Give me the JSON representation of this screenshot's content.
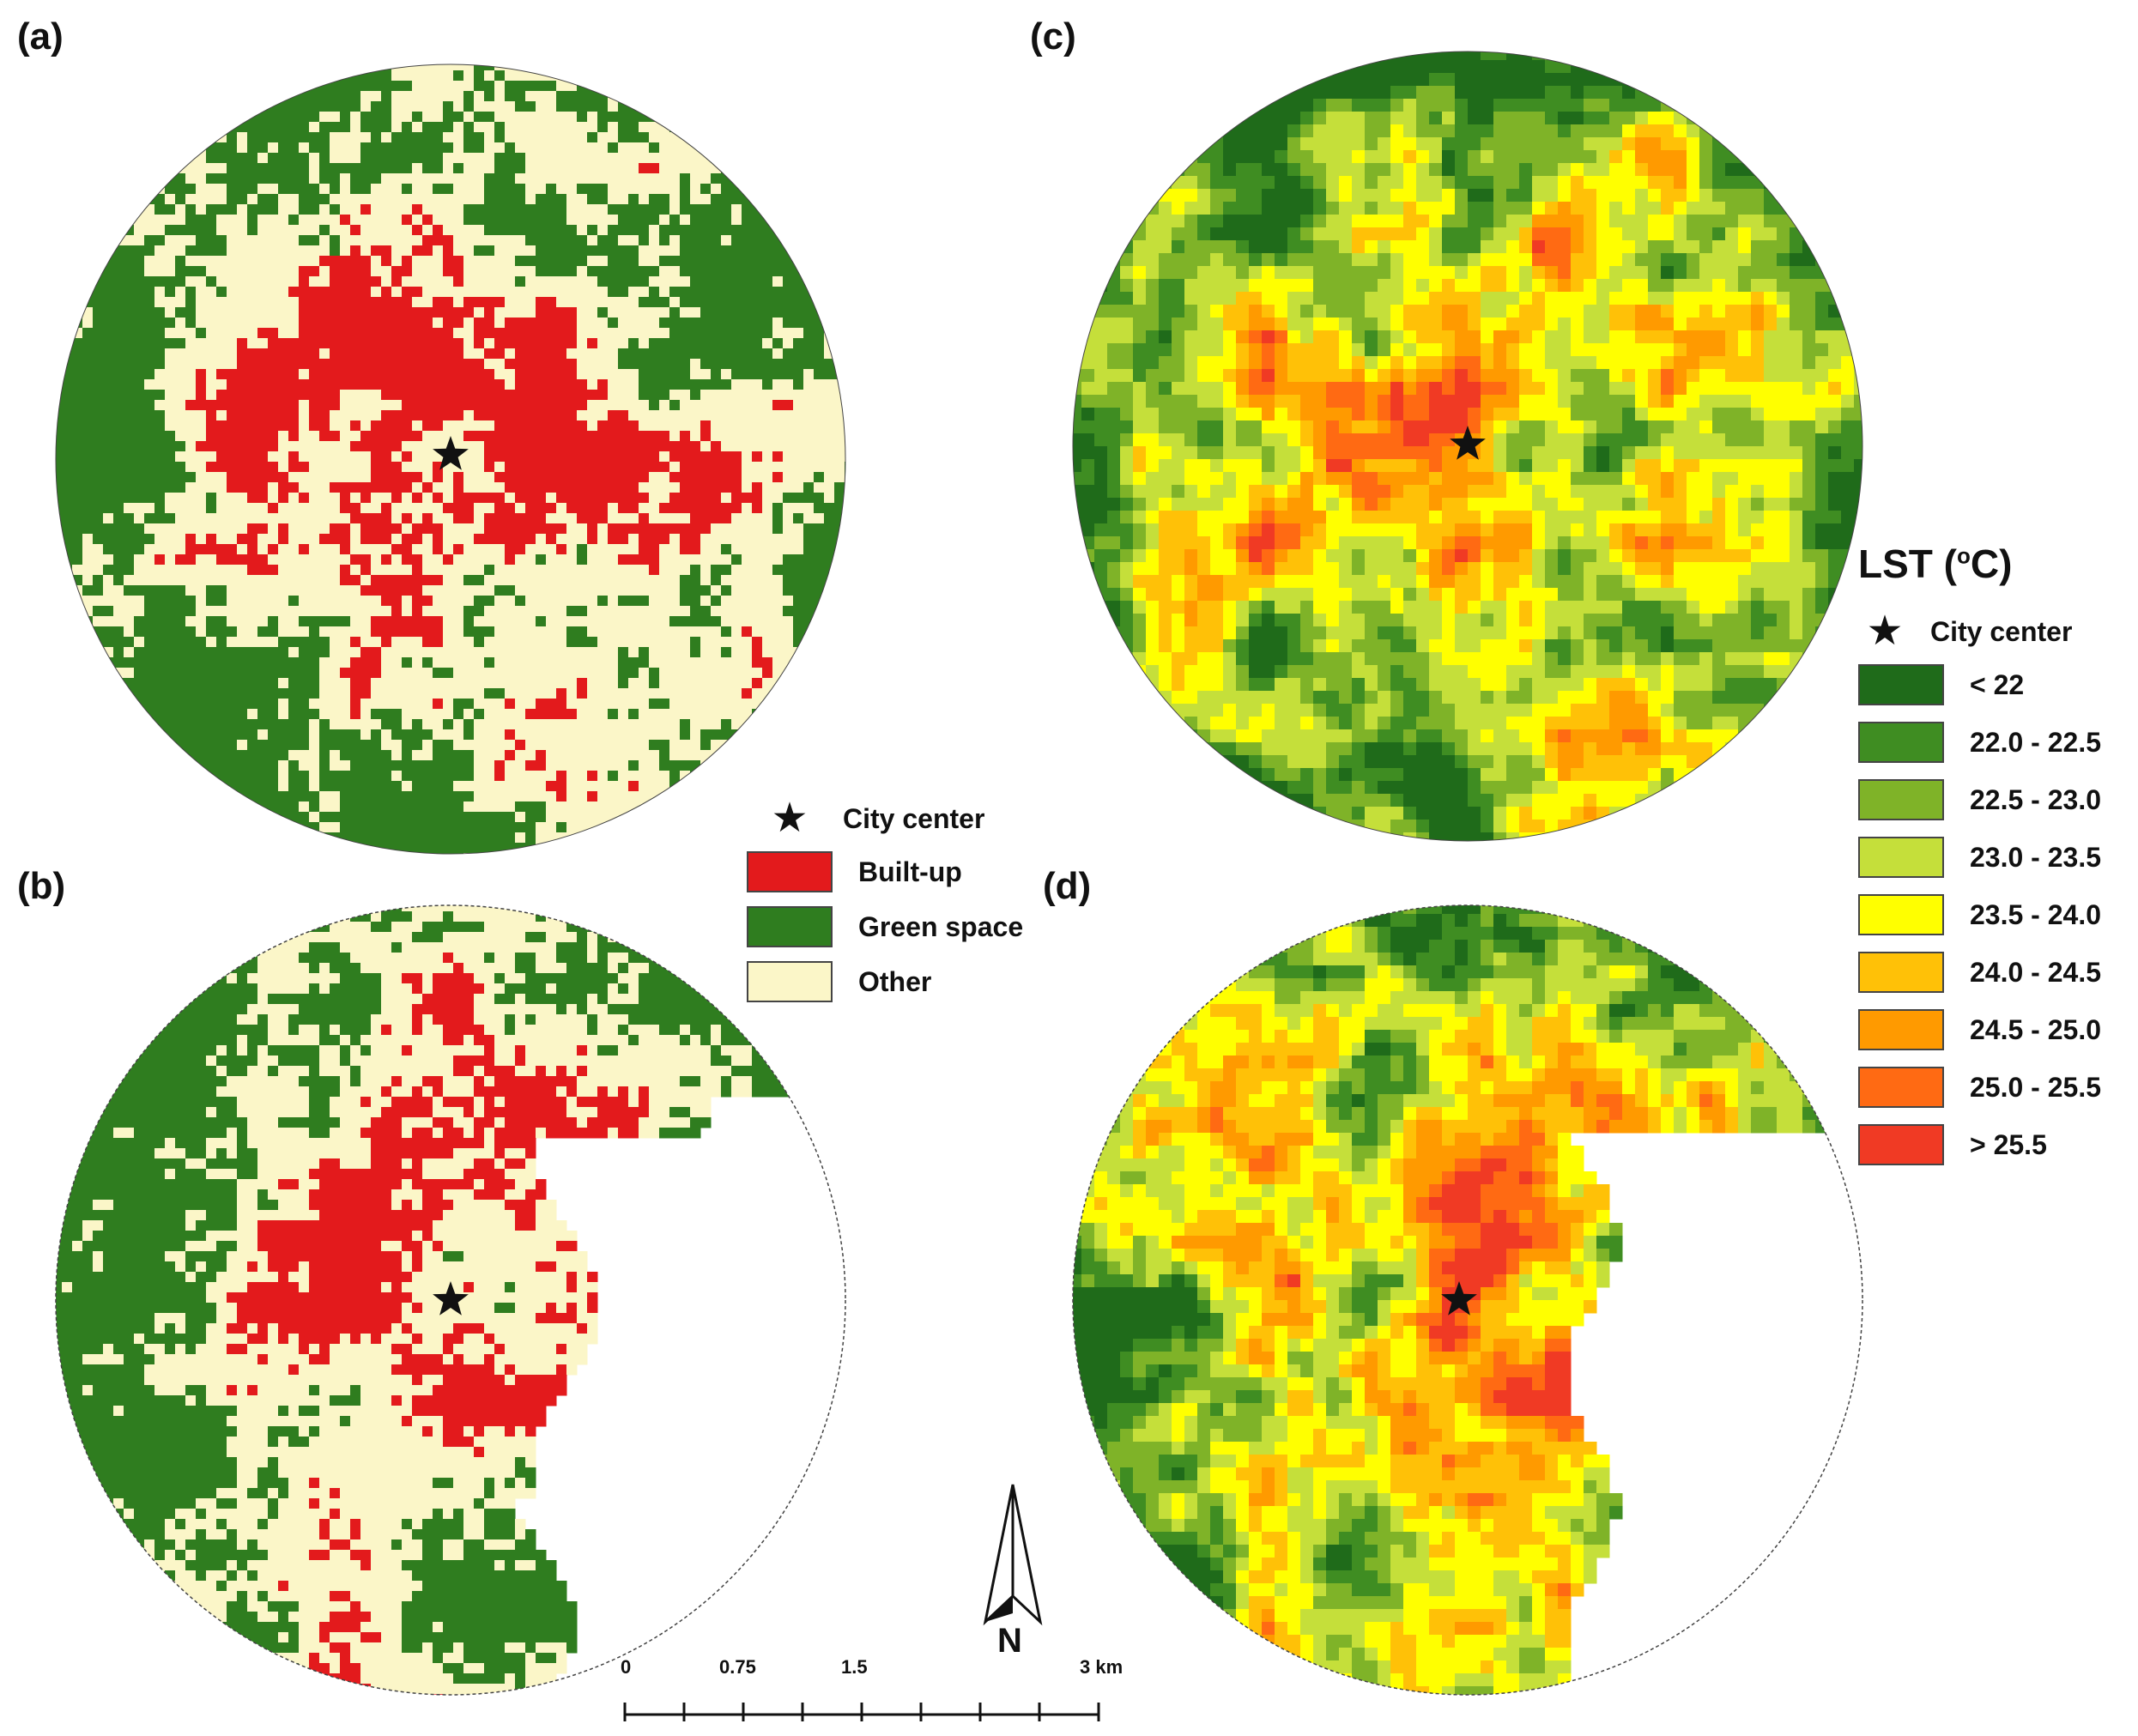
{
  "panels": {
    "a": {
      "label": "(a)",
      "kind": "landcover"
    },
    "b": {
      "label": "(b)",
      "kind": "landcover"
    },
    "c": {
      "label": "(c)",
      "kind": "lst"
    },
    "d": {
      "label": "(d)",
      "kind": "lst"
    }
  },
  "landcover_legend": {
    "city_center": "City center",
    "items": [
      {
        "label": "Built-up",
        "color": "#e31a1c"
      },
      {
        "label": "Green space",
        "color": "#2f7d1f"
      },
      {
        "label": "Other",
        "color": "#fbf6c8"
      }
    ]
  },
  "lst_legend": {
    "title": "LST (",
    "title_sup": "o",
    "title_end": "C)",
    "city_center": "City center",
    "classes": [
      {
        "label": "< 22",
        "color": "#1f6b1a"
      },
      {
        "label": "22.0 - 22.5",
        "color": "#3f8d22"
      },
      {
        "label": "22.5 - 23.0",
        "color": "#7fb328"
      },
      {
        "label": "23.0 - 23.5",
        "color": "#c5df3a"
      },
      {
        "label": "23.5 - 24.0",
        "color": "#ffff00"
      },
      {
        "label": "24.0 - 24.5",
        "color": "#ffc107"
      },
      {
        "label": "24.5 - 25.0",
        "color": "#ff9a00"
      },
      {
        "label": "25.0 - 25.5",
        "color": "#ff6a13"
      },
      {
        "label": "> 25.5",
        "color": "#f03a24"
      }
    ]
  },
  "scalebar": {
    "labels": [
      "0",
      "0.75",
      "1.5",
      "3 km"
    ]
  },
  "north_arrow": {
    "label": "N"
  }
}
